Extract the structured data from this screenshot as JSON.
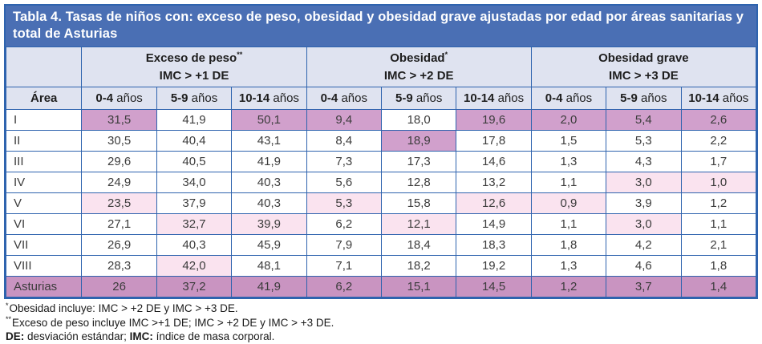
{
  "title": "Tabla 4. Tasas de niños con: exceso de peso, obesidad y obesidad grave ajustadas por edad por áreas sanitarias y total de Asturias",
  "colors": {
    "title_bg": "#4A6FB4",
    "header_bg": "#DFE3F0",
    "border": "#2E63AE",
    "highlight_dark": "#D1A0CC",
    "highlight_light": "#FAE3EF",
    "total_row_bg": "#C994C1"
  },
  "table": {
    "area_header": "Área",
    "age_suffix": "años",
    "age_ranges": [
      "0-4",
      "5-9",
      "10-14"
    ],
    "groups": [
      {
        "id": "exceso-de-peso",
        "name": "Exceso de peso",
        "marker": "**",
        "criteria": "IMC > +1 DE"
      },
      {
        "id": "obesidad",
        "name": "Obesidad",
        "marker": "*",
        "criteria": "IMC > +2 DE"
      },
      {
        "id": "obesidad-grave",
        "name": "Obesidad grave",
        "marker": "",
        "criteria": "IMC > +3 DE"
      }
    ],
    "rows": [
      {
        "area": "I",
        "total": false,
        "cells": [
          {
            "v": "31,5",
            "hl": "dark"
          },
          {
            "v": "41,9"
          },
          {
            "v": "50,1",
            "hl": "dark"
          },
          {
            "v": "9,4",
            "hl": "dark"
          },
          {
            "v": "18,0"
          },
          {
            "v": "19,6",
            "hl": "dark"
          },
          {
            "v": "2,0",
            "hl": "dark"
          },
          {
            "v": "5,4",
            "hl": "dark"
          },
          {
            "v": "2,6",
            "hl": "dark"
          }
        ]
      },
      {
        "area": "II",
        "total": false,
        "cells": [
          {
            "v": "30,5"
          },
          {
            "v": "40,4"
          },
          {
            "v": "43,1"
          },
          {
            "v": "8,4"
          },
          {
            "v": "18,9",
            "hl": "dark"
          },
          {
            "v": "17,8"
          },
          {
            "v": "1,5"
          },
          {
            "v": "5,3"
          },
          {
            "v": "2,2"
          }
        ]
      },
      {
        "area": "III",
        "total": false,
        "cells": [
          {
            "v": "29,6"
          },
          {
            "v": "40,5"
          },
          {
            "v": "41,9"
          },
          {
            "v": "7,3"
          },
          {
            "v": "17,3"
          },
          {
            "v": "14,6"
          },
          {
            "v": "1,3"
          },
          {
            "v": "4,3"
          },
          {
            "v": "1,7"
          }
        ]
      },
      {
        "area": "IV",
        "total": false,
        "cells": [
          {
            "v": "24,9"
          },
          {
            "v": "34,0"
          },
          {
            "v": "40,3"
          },
          {
            "v": "5,6"
          },
          {
            "v": "12,8"
          },
          {
            "v": "13,2"
          },
          {
            "v": "1,1"
          },
          {
            "v": "3,0",
            "hl": "light"
          },
          {
            "v": "1,0",
            "hl": "light"
          }
        ]
      },
      {
        "area": "V",
        "total": false,
        "cells": [
          {
            "v": "23,5",
            "hl": "light"
          },
          {
            "v": "37,9"
          },
          {
            "v": "40,3"
          },
          {
            "v": "5,3",
            "hl": "light"
          },
          {
            "v": "15,8"
          },
          {
            "v": "12,6",
            "hl": "light"
          },
          {
            "v": "0,9",
            "hl": "light"
          },
          {
            "v": "3,9"
          },
          {
            "v": "1,2"
          }
        ]
      },
      {
        "area": "VI",
        "total": false,
        "cells": [
          {
            "v": "27,1"
          },
          {
            "v": "32,7",
            "hl": "light"
          },
          {
            "v": "39,9",
            "hl": "light"
          },
          {
            "v": "6,2"
          },
          {
            "v": "12,1",
            "hl": "light"
          },
          {
            "v": "14,9"
          },
          {
            "v": "1,1"
          },
          {
            "v": "3,0",
            "hl": "light"
          },
          {
            "v": "1,1"
          }
        ]
      },
      {
        "area": "VII",
        "total": false,
        "cells": [
          {
            "v": "26,9"
          },
          {
            "v": "40,3"
          },
          {
            "v": "45,9"
          },
          {
            "v": "7,9"
          },
          {
            "v": "18,4"
          },
          {
            "v": "18,3"
          },
          {
            "v": "1,8"
          },
          {
            "v": "4,2"
          },
          {
            "v": "2,1"
          }
        ]
      },
      {
        "area": "VIII",
        "total": false,
        "cells": [
          {
            "v": "28,3"
          },
          {
            "v": "42,0",
            "hl": "light"
          },
          {
            "v": "48,1"
          },
          {
            "v": "7,1"
          },
          {
            "v": "18,2"
          },
          {
            "v": "19,2"
          },
          {
            "v": "1,3"
          },
          {
            "v": "4,6"
          },
          {
            "v": "1,8"
          }
        ]
      },
      {
        "area": "Asturias",
        "total": true,
        "cells": [
          {
            "v": "26"
          },
          {
            "v": "37,2"
          },
          {
            "v": "41,9"
          },
          {
            "v": "6,2"
          },
          {
            "v": "15,1"
          },
          {
            "v": "14,5"
          },
          {
            "v": "1,2"
          },
          {
            "v": "3,7"
          },
          {
            "v": "1,4"
          }
        ]
      }
    ]
  },
  "footnotes": [
    {
      "marker": "*",
      "text": "Obesidad incluye: IMC > +2 DE y IMC > +3 DE."
    },
    {
      "marker": "**",
      "text": "Exceso de peso incluye IMC >+1 DE; IMC > +2 DE y IMC > +3 DE."
    },
    {
      "de_label": "DE:",
      "de_text": " desviación estándar; ",
      "imc_label": "IMC:",
      "imc_text": " índice de masa corporal."
    }
  ]
}
